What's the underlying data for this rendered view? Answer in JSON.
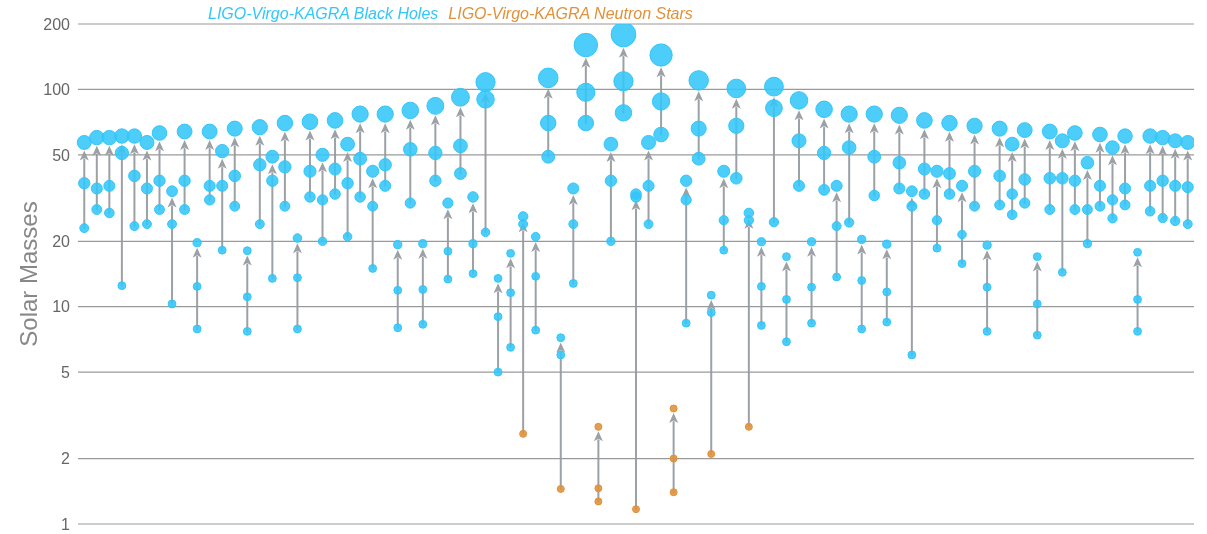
{
  "chart_data": {
    "type": "bubble",
    "ylabel": "Solar Masses",
    "log": true,
    "ylim": [
      1,
      200
    ],
    "yticks": [
      1,
      2,
      5,
      10,
      20,
      50,
      100,
      200
    ],
    "tick_labels": "y",
    "grid": "y",
    "legend": "top",
    "categories": [
      null,
      null,
      null,
      null,
      null,
      null,
      null,
      null,
      null,
      null,
      null,
      null,
      null,
      null,
      null,
      null,
      null,
      null,
      null,
      null,
      null,
      null,
      null,
      null,
      null,
      null,
      null,
      null,
      null,
      null,
      null,
      null,
      null,
      null,
      null,
      null,
      null,
      null,
      null,
      null,
      null,
      null,
      null,
      null,
      null,
      null,
      null,
      null,
      null,
      null,
      null,
      null,
      null,
      null,
      null,
      null,
      null,
      null,
      null,
      null,
      null,
      null,
      null,
      null,
      null,
      null,
      null,
      null,
      null,
      null,
      null,
      null,
      null,
      null,
      null,
      null,
      null,
      null,
      null,
      null,
      null,
      null,
      null,
      null,
      null,
      null,
      null,
      null,
      null
    ],
    "series": [
      {
        "colors": [
          "#33c6f9",
          "#33c6f9",
          "#33c6f9",
          "#33c6f9",
          "#33c6f9",
          "#33c6f9",
          "#33c6f9",
          "#33c6f9",
          "#33c6f9",
          "#33c6f9",
          "#33c6f9",
          "#33c6f9",
          "#33c6f9",
          "#33c6f9",
          "#33c6f9",
          "#33c6f9",
          "#33c6f9",
          "#33c6f9",
          "#33c6f9",
          "#33c6f9",
          "#33c6f9",
          "#33c6f9",
          "#33c6f9",
          "#33c6f9",
          "#33c6f9",
          "#33c6f9",
          "#33c6f9",
          "#33c6f9",
          "#33c6f9",
          "#33c6f9",
          "#33c6f9",
          "#33c6f9",
          "#33c6f9",
          "#33c6f9",
          "#33c6f9",
          "#33c6f9",
          "#33c6f9",
          "#33c6f9",
          "#33c6f9",
          "#33c6f9",
          "#33c6f9",
          "#e0913a",
          "#33c6f9",
          "#33c6f9",
          "#33c6f9",
          "#33c6f9",
          "#33c6f9",
          "#e0913a",
          "#33c6f9",
          "#33c6f9",
          "#33c6f9",
          "#33c6f9",
          "#33c6f9",
          "#33c6f9",
          "#33c6f9",
          "#33c6f9",
          "#33c6f9",
          "#33c6f9",
          "#33c6f9",
          "#33c6f9",
          "#33c6f9",
          "#33c6f9",
          "#33c6f9",
          "#33c6f9",
          "#33c6f9",
          "#33c6f9",
          "#33c6f9",
          "#33c6f9",
          "#33c6f9",
          "#33c6f9",
          "#33c6f9",
          "#33c6f9",
          "#33c6f9",
          "#33c6f9",
          "#33c6f9",
          "#33c6f9",
          "#33c6f9",
          "#33c6f9",
          "#33c6f9",
          "#33c6f9",
          "#33c6f9",
          "#33c6f9",
          "#33c6f9",
          "#33c6f9",
          "#33c6f9",
          "#33c6f9",
          "#33c6f9",
          "#33c6f9",
          "#33c6f9"
        ],
        "values": [
          37,
          35,
          36,
          51,
          40,
          35,
          38,
          24,
          38,
          12.4,
          36,
          36,
          40,
          11.1,
          45,
          38,
          44,
          13.6,
          42,
          31,
          43,
          37,
          48,
          29,
          45,
          11.9,
          53,
          12,
          51,
          18,
          55,
          19.5,
          90,
          9,
          11.6,
          24,
          13.8,
          70,
          6,
          24,
          97,
          1.46,
          38,
          109,
          32,
          36,
          88,
          2.0,
          31,
          66,
          9.4,
          25,
          68,
          25,
          12.4,
          82,
          10.8,
          58,
          12.3,
          51,
          23.5,
          54,
          13.2,
          49,
          11.7,
          46,
          29,
          43,
          25,
          41,
          21.5,
          42,
          12.3,
          40,
          33,
          38.5,
          10.3,
          39,
          39,
          38,
          28,
          36,
          31,
          35,
          10.8,
          36,
          38,
          36,
          35.5
        ],
        "sizes": [
          0.21,
          0.2,
          0.2,
          0.29,
          0.22,
          0.2,
          0.21,
          0.13,
          0.21,
          0.1,
          0.2,
          0.2,
          0.22,
          0.1,
          0.25,
          0.21,
          0.25,
          0.1,
          0.24,
          0.17,
          0.24,
          0.21,
          0.27,
          0.16,
          0.25,
          0.1,
          0.3,
          0.1,
          0.29,
          0.1,
          0.31,
          0.11,
          0.5,
          0.1,
          0.1,
          0.13,
          0.1,
          0.39,
          0.1,
          0.13,
          0.54,
          0.08,
          0.21,
          0.61,
          0.18,
          0.2,
          0.49,
          0.08,
          0.17,
          0.37,
          0.1,
          0.14,
          0.38,
          0.14,
          0.1,
          0.46,
          0.1,
          0.32,
          0.1,
          0.29,
          0.13,
          0.3,
          0.1,
          0.27,
          0.1,
          0.26,
          0.16,
          0.24,
          0.14,
          0.23,
          0.12,
          0.24,
          0.1,
          0.22,
          0.18,
          0.22,
          0.1,
          0.22,
          0.22,
          0.21,
          0.16,
          0.2,
          0.17,
          0.2,
          0.1,
          0.2,
          0.21,
          0.2,
          0.2
        ]
      },
      {
        "colors": [
          "#33c6f9",
          "#33c6f9",
          "#33c6f9",
          "#33c6f9",
          "#33c6f9",
          "#33c6f9",
          "#33c6f9",
          "#33c6f9",
          "#33c6f9",
          "#33c6f9",
          "#33c6f9",
          "#33c6f9",
          "#33c6f9",
          "#33c6f9",
          "#33c6f9",
          "#33c6f9",
          "#33c6f9",
          "#33c6f9",
          "#33c6f9",
          "#33c6f9",
          "#33c6f9",
          "#33c6f9",
          "#33c6f9",
          "#33c6f9",
          "#33c6f9",
          "#33c6f9",
          "#33c6f9",
          "#33c6f9",
          "#33c6f9",
          "#33c6f9",
          "#33c6f9",
          "#33c6f9",
          "#33c6f9",
          "#33c6f9",
          "#33c6f9",
          "#e0913a",
          "#33c6f9",
          "#33c6f9",
          "#e0913a",
          "#33c6f9",
          "#33c6f9",
          "#e0913a",
          "#33c6f9",
          "#33c6f9",
          "#e0913a",
          "#33c6f9",
          "#33c6f9",
          "#e0913a",
          "#33c6f9",
          "#33c6f9",
          "#e0913a",
          "#33c6f9",
          "#33c6f9",
          "#e0913a",
          "#33c6f9",
          "#33c6f9",
          "#33c6f9",
          "#33c6f9",
          "#33c6f9",
          "#33c6f9",
          "#33c6f9",
          "#33c6f9",
          "#33c6f9",
          "#33c6f9",
          "#33c6f9",
          "#33c6f9",
          "#33c6f9",
          "#33c6f9",
          "#33c6f9",
          "#33c6f9",
          "#33c6f9",
          "#33c6f9",
          "#33c6f9",
          "#33c6f9",
          "#33c6f9",
          "#33c6f9",
          "#33c6f9",
          "#33c6f9",
          "#33c6f9",
          "#33c6f9",
          "#33c6f9",
          "#33c6f9",
          "#33c6f9",
          "#33c6f9",
          "#33c6f9",
          "#33c6f9",
          "#33c6f9",
          "#33c6f9",
          "#33c6f9"
        ],
        "values": [
          23,
          28,
          27,
          12.5,
          23.5,
          24,
          28,
          10.3,
          28,
          7.9,
          31,
          18.2,
          29,
          7.7,
          24,
          13.5,
          29,
          7.9,
          32,
          20,
          33,
          21,
          32,
          15,
          36,
          8,
          30,
          8.3,
          38,
          13.4,
          41,
          14.2,
          22,
          5,
          6.5,
          2.6,
          7.8,
          49,
          1.45,
          12.8,
          70,
          1.27,
          20,
          78,
          1.17,
          24,
          62,
          1.4,
          8.4,
          48,
          2.1,
          18.2,
          39,
          2.8,
          8.2,
          24.5,
          6.9,
          36,
          8.4,
          34.5,
          13.7,
          24.4,
          7.9,
          32.5,
          8.5,
          35,
          6,
          33,
          18.6,
          33,
          15.8,
          29,
          7.7,
          29.4,
          26.5,
          30,
          7.4,
          28,
          14.4,
          28,
          19.5,
          29,
          25.5,
          29.4,
          7.7,
          27.5,
          25.6,
          24.8,
          24
        ],
        "sizes": [
          0.13,
          0.16,
          0.15,
          0.1,
          0.13,
          0.13,
          0.16,
          0.1,
          0.16,
          0.1,
          0.17,
          0.1,
          0.16,
          0.1,
          0.13,
          0.1,
          0.16,
          0.1,
          0.18,
          0.11,
          0.18,
          0.12,
          0.18,
          0.1,
          0.2,
          0.1,
          0.17,
          0.1,
          0.21,
          0.1,
          0.23,
          0.1,
          0.12,
          0.1,
          0.1,
          0.08,
          0.1,
          0.27,
          0.08,
          0.1,
          0.39,
          0.08,
          0.11,
          0.44,
          0.08,
          0.13,
          0.35,
          0.08,
          0.1,
          0.27,
          0.08,
          0.1,
          0.22,
          0.08,
          0.1,
          0.14,
          0.1,
          0.2,
          0.1,
          0.19,
          0.1,
          0.14,
          0.1,
          0.18,
          0.1,
          0.2,
          0.1,
          0.18,
          0.1,
          0.18,
          0.1,
          0.16,
          0.1,
          0.16,
          0.15,
          0.17,
          0.1,
          0.16,
          0.1,
          0.16,
          0.11,
          0.16,
          0.14,
          0.16,
          0.1,
          0.15,
          0.14,
          0.14,
          0.13
        ]
      },
      {
        "name": "LIGO-Virgo-KAGRA Black Holes",
        "color": "#33c6f9",
        "values": [
          57,
          60,
          60,
          61,
          61,
          57,
          63,
          34,
          64,
          19.7,
          64,
          52,
          66,
          18.1,
          67,
          49,
          70,
          20.7,
          71,
          50,
          72,
          56,
          77,
          42,
          77,
          19.3,
          80,
          19.5,
          84,
          30,
          92,
          32,
          108,
          13.5,
          17.6,
          26,
          21,
          113,
          7.2,
          35,
          160,
          null,
          56,
          179,
          33,
          57,
          144,
          null,
          38,
          110,
          11.3,
          42,
          101,
          27,
          19.9,
          103,
          17,
          89,
          19.9,
          81,
          36,
          77,
          20.4,
          77,
          19.4,
          76,
          34,
          72,
          42,
          70,
          36,
          68,
          19.2,
          66,
          56,
          65,
          17,
          64,
          58,
          63,
          46,
          62,
          54,
          61,
          17.8,
          61,
          60,
          58,
          57
        ],
        "sizes": [
          0.32,
          0.34,
          0.34,
          0.34,
          0.34,
          0.32,
          0.35,
          0.19,
          0.36,
          0.11,
          0.36,
          0.29,
          0.37,
          0.1,
          0.38,
          0.27,
          0.39,
          0.12,
          0.4,
          0.28,
          0.4,
          0.31,
          0.43,
          0.24,
          0.43,
          0.11,
          0.45,
          0.11,
          0.47,
          0.17,
          0.52,
          0.18,
          0.6,
          0.1,
          0.1,
          0.15,
          0.12,
          0.63,
          0.1,
          0.2,
          0.9,
          null,
          0.31,
          1,
          0.18,
          0.32,
          0.81,
          null,
          0.21,
          0.62,
          0.1,
          0.24,
          0.57,
          0.15,
          0.11,
          0.58,
          0.1,
          0.5,
          0.11,
          0.45,
          0.2,
          0.43,
          0.11,
          0.43,
          0.11,
          0.43,
          0.19,
          0.4,
          0.24,
          0.39,
          0.2,
          0.38,
          0.11,
          0.37,
          0.31,
          0.36,
          0.1,
          0.36,
          0.32,
          0.35,
          0.26,
          0.35,
          0.3,
          0.34,
          0.1,
          0.34,
          0.34,
          0.32,
          0.32
        ]
      },
      {
        "name": "LIGO-Virgo-KAGRA Neutron Stars",
        "color": "#e0913a",
        "values": [
          null,
          null,
          null,
          null,
          null,
          null,
          null,
          null,
          null,
          null,
          null,
          null,
          null,
          null,
          null,
          null,
          null,
          null,
          null,
          null,
          null,
          null,
          null,
          null,
          null,
          null,
          null,
          null,
          null,
          null,
          null,
          null,
          null,
          null,
          null,
          null,
          null,
          null,
          null,
          null,
          null,
          2.8,
          null,
          null,
          null,
          null,
          null,
          3.4,
          null,
          null,
          null,
          null,
          null,
          null,
          null,
          null,
          null,
          null,
          null,
          null,
          null,
          null,
          null,
          null,
          null,
          null,
          null,
          null,
          null,
          null,
          null,
          null,
          null,
          null,
          null,
          null,
          null,
          null,
          null,
          null,
          null,
          null,
          null,
          null,
          null,
          null,
          null,
          null,
          null
        ],
        "sizes": [
          null,
          null,
          null,
          null,
          null,
          null,
          null,
          null,
          null,
          null,
          null,
          null,
          null,
          null,
          null,
          null,
          null,
          null,
          null,
          null,
          null,
          null,
          null,
          null,
          null,
          null,
          null,
          null,
          null,
          null,
          null,
          null,
          null,
          null,
          null,
          null,
          null,
          null,
          null,
          null,
          null,
          0.08,
          null,
          null,
          null,
          null,
          null,
          0.08,
          null,
          null,
          null,
          null,
          null,
          null,
          null,
          null,
          null,
          null,
          null,
          null,
          null,
          null,
          null,
          null,
          null,
          null,
          null,
          null,
          null,
          null,
          null,
          null,
          null,
          null,
          null,
          null,
          null,
          null,
          null,
          null,
          null,
          null,
          null,
          null,
          null,
          null,
          null,
          null,
          null
        ]
      }
    ]
  }
}
